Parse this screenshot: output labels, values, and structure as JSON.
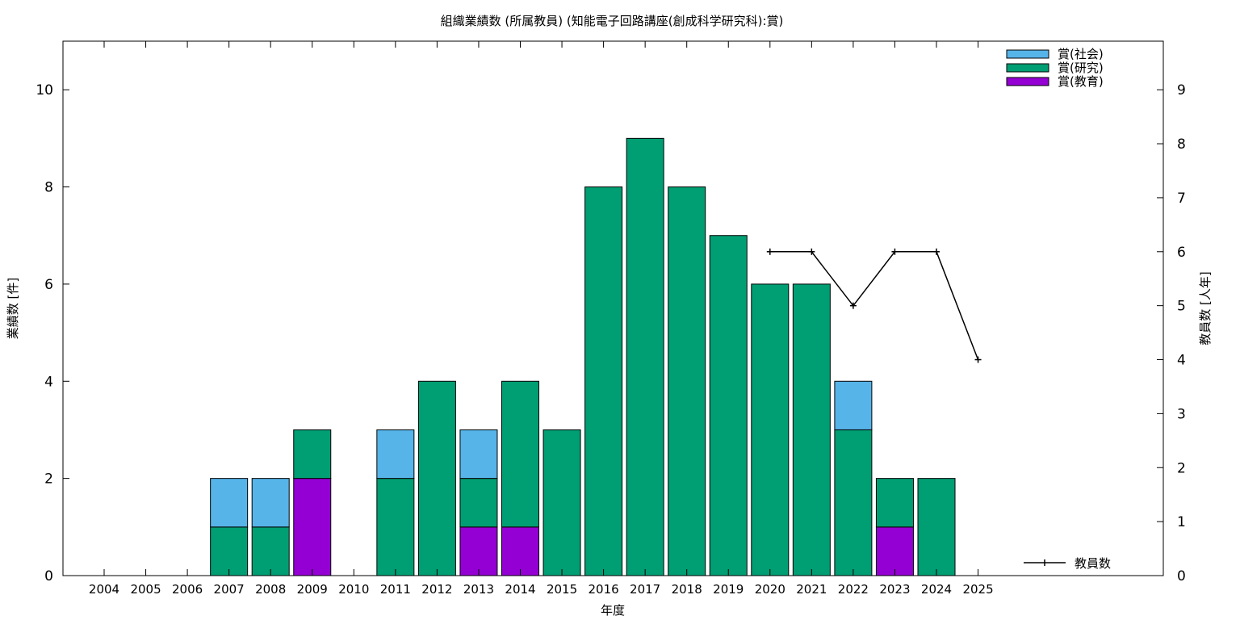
{
  "chart_data": {
    "type": "bar",
    "stacked": true,
    "title": "組織業績数 (所属教員) (知能電子回路講座(創成科学研究科):賞)",
    "xlabel": "年度",
    "ylabel": "業績数 [件]",
    "y2label": "教員数 [人年]",
    "ylim": [
      0,
      11
    ],
    "y2lim": [
      0,
      9.9
    ],
    "yticks": [
      0,
      2,
      4,
      6,
      8,
      10
    ],
    "y2ticks": [
      0,
      1,
      2,
      3,
      4,
      5,
      6,
      7,
      8,
      9
    ],
    "categories": [
      "2004",
      "2005",
      "2006",
      "2007",
      "2008",
      "2009",
      "2010",
      "2011",
      "2012",
      "2013",
      "2014",
      "2015",
      "2016",
      "2017",
      "2018",
      "2019",
      "2020",
      "2021",
      "2022",
      "2023",
      "2024",
      "2025"
    ],
    "series": [
      {
        "name": "賞(教育)",
        "color": "#9400d3",
        "values": [
          0,
          0,
          0,
          0,
          0,
          2,
          0,
          0,
          0,
          1,
          1,
          0,
          0,
          0,
          0,
          0,
          0,
          0,
          0,
          1,
          0,
          0
        ]
      },
      {
        "name": "賞(研究)",
        "color": "#009e73",
        "values": [
          0,
          0,
          0,
          1,
          1,
          1,
          0,
          2,
          4,
          1,
          3,
          3,
          8,
          9,
          8,
          7,
          6,
          6,
          3,
          1,
          2,
          0
        ]
      },
      {
        "name": "賞(社会)",
        "color": "#56b4e9",
        "values": [
          0,
          0,
          0,
          1,
          1,
          0,
          0,
          1,
          0,
          1,
          0,
          0,
          0,
          0,
          0,
          0,
          0,
          0,
          1,
          0,
          0,
          0
        ]
      }
    ],
    "line_series": {
      "name": "教員数",
      "axis": "y2",
      "color": "#000000",
      "points": [
        {
          "x": "2020",
          "y": 6
        },
        {
          "x": "2021",
          "y": 6
        },
        {
          "x": "2022",
          "y": 5
        },
        {
          "x": "2023",
          "y": 6
        },
        {
          "x": "2024",
          "y": 6
        },
        {
          "x": "2025",
          "y": 4
        }
      ]
    },
    "legend_placement": "top-right",
    "line_legend_placement": "bottom-right",
    "grid": false
  }
}
